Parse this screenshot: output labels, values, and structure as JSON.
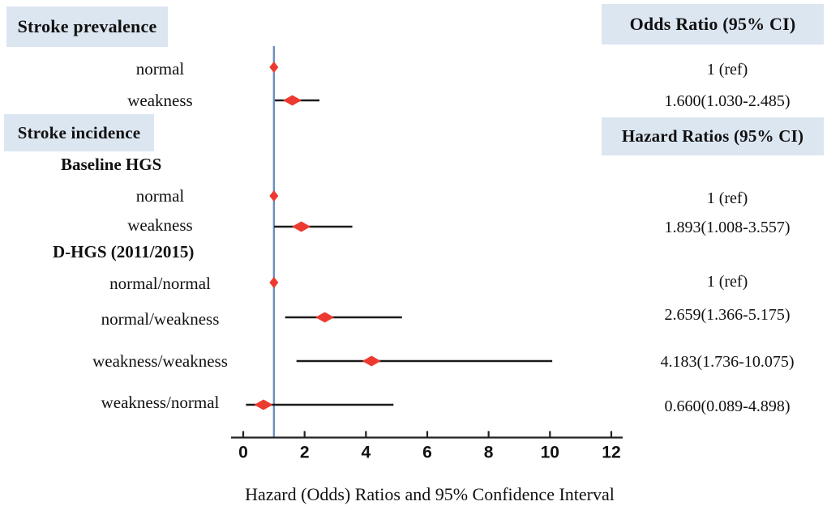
{
  "figure": {
    "section_headers": {
      "stroke_prevalence": "Stroke prevalence",
      "stroke_incidence": "Stroke incidence"
    },
    "column_headers": {
      "odds_ratio": "Odds Ratio (95% CI)",
      "hazard_ratios": "Hazard Ratios (95% CI)"
    }
  },
  "chart_data": {
    "type": "scatter",
    "subtype": "forest-plot",
    "title": "",
    "xlabel": "Hazard (Odds) Ratios and 95% Confidence Interval",
    "ylabel": "",
    "x_ticks": [
      0,
      2,
      4,
      6,
      8,
      10,
      12
    ],
    "xlim": [
      0,
      12.4
    ],
    "grid": false,
    "legend_position": "none",
    "reference_line_x": 1,
    "groups": [
      "Baseline HGS",
      "D-HGS (2011/2015)"
    ],
    "rows": [
      {
        "section": "Stroke prevalence",
        "group": null,
        "label": "normal",
        "estimate": 1,
        "ci_low": null,
        "ci_high": null,
        "value_text": "1 (ref)"
      },
      {
        "section": "Stroke prevalence",
        "group": null,
        "label": "weakness",
        "estimate": 1.6,
        "ci_low": 1.03,
        "ci_high": 2.485,
        "value_text": "1.600(1.030-2.485)"
      },
      {
        "section": "Stroke incidence",
        "group": "Baseline HGS",
        "label": "normal",
        "estimate": 1,
        "ci_low": null,
        "ci_high": null,
        "value_text": "1 (ref)"
      },
      {
        "section": "Stroke incidence",
        "group": "Baseline HGS",
        "label": "weakness",
        "estimate": 1.893,
        "ci_low": 1.008,
        "ci_high": 3.557,
        "value_text": "1.893(1.008-3.557)"
      },
      {
        "section": "Stroke incidence",
        "group": "D-HGS (2011/2015)",
        "label": "normal/normal",
        "estimate": 1,
        "ci_low": null,
        "ci_high": null,
        "value_text": "1 (ref)"
      },
      {
        "section": "Stroke incidence",
        "group": "D-HGS (2011/2015)",
        "label": "normal/weakness",
        "estimate": 2.659,
        "ci_low": 1.366,
        "ci_high": 5.175,
        "value_text": "2.659(1.366-5.175)"
      },
      {
        "section": "Stroke incidence",
        "group": "D-HGS (2011/2015)",
        "label": "weakness/weakness",
        "estimate": 4.183,
        "ci_low": 1.736,
        "ci_high": 10.075,
        "value_text": "4.183(1.736-10.075)"
      },
      {
        "section": "Stroke incidence",
        "group": "D-HGS (2011/2015)",
        "label": "weakness/normal",
        "estimate": 0.66,
        "ci_low": 0.089,
        "ci_high": 4.898,
        "value_text": "0.660(0.089-4.898)"
      }
    ],
    "colors": {
      "diamond": "#ec3a30",
      "ref_line": "#6b8fbe",
      "ci_line": "#1a1a1a",
      "axis": "#222222",
      "header_fill": "#dce6f1"
    }
  }
}
